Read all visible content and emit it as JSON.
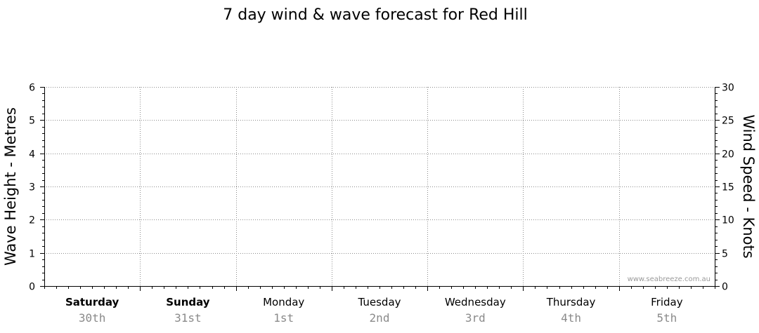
{
  "chart_data": {
    "type": "line",
    "title": "7 day wind & wave forecast for Red Hill",
    "ylabel_left": "Wave Height - Metres",
    "ylabel_right": "Wind Speed - Knots",
    "ylim_left": [
      0,
      6
    ],
    "ylim_right": [
      0,
      30
    ],
    "left_ticks": [
      "0",
      "1",
      "2",
      "3",
      "4",
      "5",
      "6"
    ],
    "right_ticks": [
      "0",
      "5",
      "10",
      "15",
      "20",
      "25",
      "30"
    ],
    "grid": true,
    "days": [
      {
        "day": "Saturday",
        "date": "30th",
        "bold": true
      },
      {
        "day": "Sunday",
        "date": "31st",
        "bold": true
      },
      {
        "day": "Monday",
        "date": "1st",
        "bold": false
      },
      {
        "day": "Tuesday",
        "date": "2nd",
        "bold": false
      },
      {
        "day": "Wednesday",
        "date": "3rd",
        "bold": false
      },
      {
        "day": "Thursday",
        "date": "4th",
        "bold": false
      },
      {
        "day": "Friday",
        "date": "5th",
        "bold": false
      }
    ],
    "series": [],
    "watermark": "www.seabreeze.com.au"
  }
}
